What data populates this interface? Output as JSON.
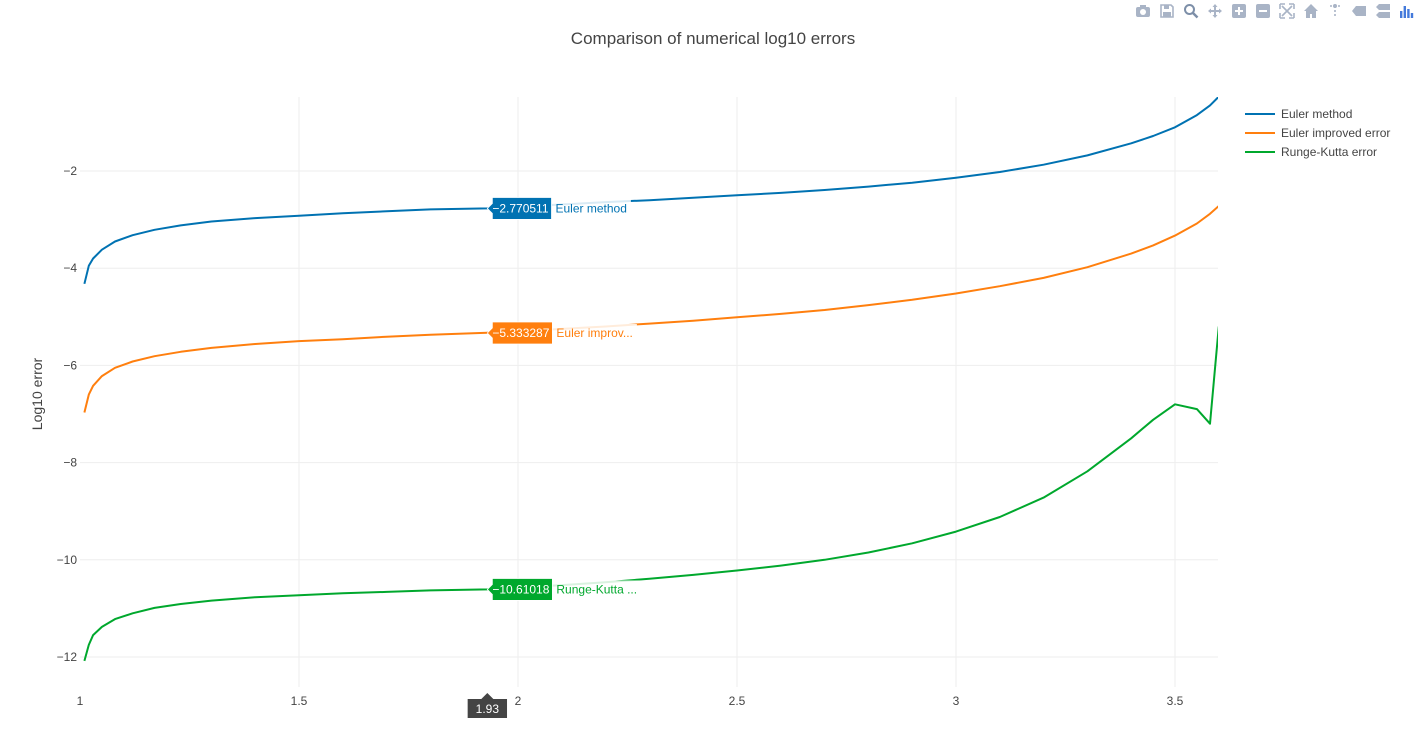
{
  "modebar": {
    "buttons": [
      {
        "icon": "camera-icon",
        "title": "Download plot as a png"
      },
      {
        "icon": "save-icon",
        "title": "Save"
      },
      {
        "icon": "zoom-icon",
        "title": "Zoom"
      },
      {
        "icon": "pan-icon",
        "title": "Pan"
      },
      {
        "icon": "zoom-in-icon",
        "title": "Zoom in"
      },
      {
        "icon": "zoom-out-icon",
        "title": "Zoom out"
      },
      {
        "icon": "autoscale-icon",
        "title": "Autoscale"
      },
      {
        "icon": "home-icon",
        "title": "Reset axes"
      },
      {
        "icon": "spike-lines-icon",
        "title": "Toggle spike lines"
      },
      {
        "icon": "hover-closest-icon",
        "title": "Show closest data on hover"
      },
      {
        "icon": "hover-compare-icon",
        "title": "Compare data on hover"
      },
      {
        "icon": "plotly-logo-icon",
        "title": "Produced with Plotly"
      }
    ],
    "active_color": "#7d8fa8",
    "color": "#a9b4c6"
  },
  "chart_data": {
    "type": "line",
    "title": "Comparison of numerical log10 errors",
    "xlabel": "",
    "ylabel": "Log10 error",
    "xlim": [
      1,
      3.6
    ],
    "ylim": [
      -12.6,
      -0.5
    ],
    "x_ticks": [
      1,
      1.5,
      2,
      2.5,
      3,
      3.5
    ],
    "x_tick_labels": [
      "1",
      "1.5",
      "2",
      "2.5",
      "3",
      "3.5"
    ],
    "y_ticks": [
      -2,
      -4,
      -6,
      -8,
      -10,
      -12
    ],
    "y_tick_labels": [
      "−2",
      "−4",
      "−6",
      "−8",
      "−10",
      "−12"
    ],
    "grid": true,
    "legend_position": "top-right",
    "hover": {
      "x_value": 1.93,
      "x_label": "1.93",
      "points": [
        {
          "series": 0,
          "y": -2.770511,
          "value_label": "−2.770511",
          "name_label": "Euler method"
        },
        {
          "series": 1,
          "y": -5.333287,
          "value_label": "−5.333287",
          "name_label": "Euler improv..."
        },
        {
          "series": 2,
          "y": -10.61018,
          "value_label": "−10.61018",
          "name_label": "Runge-Kutta ..."
        }
      ]
    },
    "x": [
      1.01,
      1.02,
      1.03,
      1.05,
      1.08,
      1.12,
      1.17,
      1.23,
      1.3,
      1.4,
      1.5,
      1.6,
      1.7,
      1.8,
      1.93,
      2.0,
      2.1,
      2.2,
      2.3,
      2.4,
      2.5,
      2.6,
      2.7,
      2.8,
      2.9,
      3.0,
      3.1,
      3.2,
      3.3,
      3.4,
      3.45,
      3.5,
      3.55,
      3.58,
      3.6
    ],
    "series": [
      {
        "name": "Euler method",
        "color": "#0072b2",
        "values": [
          -4.32,
          -3.95,
          -3.8,
          -3.62,
          -3.45,
          -3.32,
          -3.21,
          -3.12,
          -3.04,
          -2.97,
          -2.92,
          -2.87,
          -2.83,
          -2.79,
          -2.77,
          -2.73,
          -2.69,
          -2.64,
          -2.6,
          -2.55,
          -2.5,
          -2.45,
          -2.39,
          -2.32,
          -2.24,
          -2.14,
          -2.02,
          -1.87,
          -1.68,
          -1.43,
          -1.28,
          -1.1,
          -0.85,
          -0.65,
          -0.47
        ]
      },
      {
        "name": "Euler improved error",
        "color": "#ff7f0e",
        "values": [
          -6.97,
          -6.6,
          -6.42,
          -6.22,
          -6.05,
          -5.92,
          -5.81,
          -5.72,
          -5.64,
          -5.56,
          -5.5,
          -5.46,
          -5.41,
          -5.37,
          -5.33,
          -5.3,
          -5.25,
          -5.2,
          -5.14,
          -5.08,
          -5.01,
          -4.94,
          -4.86,
          -4.76,
          -4.65,
          -4.52,
          -4.37,
          -4.2,
          -3.98,
          -3.7,
          -3.53,
          -3.33,
          -3.08,
          -2.88,
          -2.72
        ]
      },
      {
        "name": "Runge-Kutta error",
        "color": "#00a82d",
        "values": [
          -12.08,
          -11.75,
          -11.55,
          -11.38,
          -11.22,
          -11.1,
          -10.99,
          -10.91,
          -10.84,
          -10.77,
          -10.73,
          -10.69,
          -10.66,
          -10.63,
          -10.61,
          -10.57,
          -10.52,
          -10.46,
          -10.39,
          -10.31,
          -10.22,
          -10.12,
          -10.0,
          -9.85,
          -9.66,
          -9.42,
          -9.12,
          -8.72,
          -8.18,
          -7.5,
          -7.12,
          -6.8,
          -6.9,
          -7.2,
          -5.2
        ]
      }
    ]
  }
}
